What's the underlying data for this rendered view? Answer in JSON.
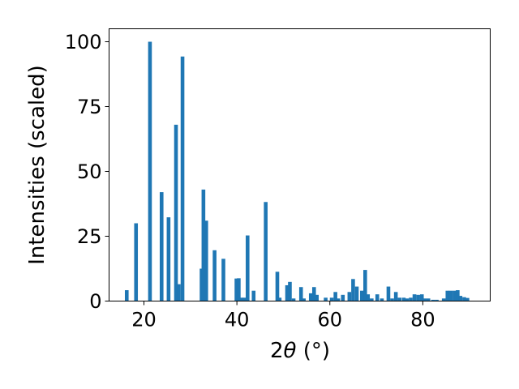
{
  "chart_data": {
    "type": "bar",
    "xlabel_main": "2",
    "xlabel_theta": "θ",
    "xlabel_unit": " (°)",
    "ylabel": "Intensities (scaled)",
    "xlim": [
      12.5,
      94.5
    ],
    "ylim": [
      0,
      105
    ],
    "grid": false,
    "bar_width": 0.8,
    "color": "#1f77b4",
    "x_ticks": [
      20,
      40,
      60,
      80
    ],
    "y_ticks": [
      0,
      25,
      50,
      75,
      100
    ],
    "x": [
      16.3,
      18.3,
      21.3,
      23.8,
      25.3,
      26.9,
      27.5,
      28.3,
      32.4,
      32.8,
      33.4,
      35.2,
      37.1,
      39.9,
      40.4,
      41.0,
      41.6,
      42.3,
      43.6,
      46.2,
      48.7,
      49.2,
      50.8,
      51.4,
      52.2,
      53.8,
      54.4,
      55.9,
      56.6,
      57.2,
      59.1,
      60.4,
      61.2,
      61.8,
      62.8,
      64.2,
      65.0,
      65.8,
      66.9,
      67.6,
      68.2,
      69.0,
      70.2,
      71.2,
      72.6,
      73.4,
      74.2,
      75.0,
      75.9,
      76.6,
      77.4,
      78.2,
      79.0,
      79.8,
      80.4,
      81.2,
      82.2,
      83.0,
      84.5,
      85.3,
      86.0,
      86.8,
      87.5,
      88.1,
      88.9,
      89.6
    ],
    "values": [
      4.2,
      30.0,
      100.0,
      42.0,
      32.3,
      68.0,
      6.5,
      94.3,
      12.5,
      43.0,
      31.0,
      19.6,
      16.3,
      8.7,
      8.8,
      1.3,
      1.3,
      25.3,
      4.0,
      38.2,
      11.3,
      1.3,
      6.1,
      7.4,
      1.0,
      5.4,
      1.0,
      3.0,
      5.4,
      2.4,
      1.3,
      1.3,
      3.5,
      1.0,
      2.4,
      3.5,
      8.5,
      5.6,
      4.0,
      12.0,
      2.6,
      1.0,
      2.6,
      1.0,
      5.6,
      1.0,
      3.5,
      1.3,
      1.3,
      1.0,
      1.3,
      2.6,
      2.4,
      2.6,
      1.0,
      1.0,
      0.5,
      0.5,
      1.0,
      4.0,
      4.0,
      4.0,
      4.2,
      2.0,
      1.5,
      1.2
    ]
  }
}
